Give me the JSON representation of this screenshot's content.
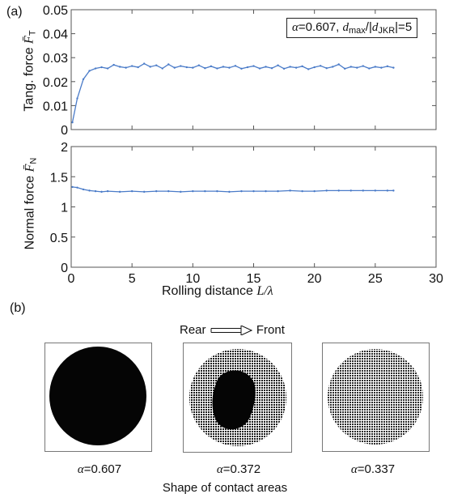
{
  "panel_a_label": "(a)",
  "panel_b_label": "(b)",
  "chart_data": [
    {
      "type": "line",
      "ylabel": "Tang. force F̄T",
      "ylabel_main": "Tang. force",
      "ylabel_symbol": "F̄",
      "ylabel_sub": "T",
      "xlim": [
        0,
        30
      ],
      "ylim": [
        0,
        0.05
      ],
      "yticks": [
        "0",
        "0.01",
        "0.02",
        "0.03",
        "0.04",
        "0.05"
      ],
      "ytick_values": [
        0,
        0.01,
        0.02,
        0.03,
        0.04,
        0.05
      ],
      "annotation": {
        "alpha_sym": "α",
        "alpha_val": "=0.607, ",
        "d": "d",
        "d_sub": "max",
        "mid": "/|",
        "d2": "d",
        "d2_sub": "JKR",
        "end": "|=5"
      },
      "series": [
        {
          "color": "#4a7bc8",
          "x": [
            0.1,
            0.5,
            1.0,
            1.5,
            2.0,
            2.5,
            3.0,
            3.5,
            4.0,
            4.5,
            5.0,
            5.5,
            6.0,
            6.5,
            7.0,
            7.5,
            8.0,
            8.5,
            9.0,
            9.5,
            10.0,
            10.5,
            11.0,
            11.5,
            12.0,
            12.5,
            13.0,
            13.5,
            14.0,
            14.5,
            15.0,
            15.5,
            16.0,
            16.5,
            17.0,
            17.5,
            18.0,
            18.5,
            19.0,
            19.5,
            20.0,
            20.5,
            21.0,
            21.5,
            22.0,
            22.5,
            23.0,
            23.5,
            24.0,
            24.5,
            25.0,
            25.5,
            26.0,
            26.5
          ],
          "y": [
            0.003,
            0.013,
            0.021,
            0.0245,
            0.0255,
            0.026,
            0.0255,
            0.027,
            0.0262,
            0.0258,
            0.0265,
            0.026,
            0.0275,
            0.0262,
            0.0268,
            0.0255,
            0.0272,
            0.0258,
            0.0265,
            0.026,
            0.0258,
            0.0268,
            0.0256,
            0.0264,
            0.0255,
            0.0262,
            0.0258,
            0.0266,
            0.0254,
            0.026,
            0.0265,
            0.0255,
            0.0262,
            0.0256,
            0.0268,
            0.0254,
            0.0262,
            0.0258,
            0.0264,
            0.0252,
            0.026,
            0.0266,
            0.0256,
            0.0262,
            0.0272,
            0.0254,
            0.0262,
            0.0258,
            0.0265,
            0.0255,
            0.0262,
            0.0258,
            0.0264,
            0.0258
          ]
        }
      ]
    },
    {
      "type": "line",
      "ylabel": "Normal force F̄N",
      "ylabel_main": "Normal force",
      "ylabel_symbol": "F̄",
      "ylabel_sub": "N",
      "xlabel": "Rolling distance L/λ",
      "xlabel_main": "Rolling distance ",
      "xlabel_var": "L/λ",
      "xlim": [
        0,
        30
      ],
      "ylim": [
        0,
        2
      ],
      "xticks": [
        "0",
        "5",
        "10",
        "15",
        "20",
        "25",
        "30"
      ],
      "xtick_values": [
        0,
        5,
        10,
        15,
        20,
        25,
        30
      ],
      "yticks": [
        "0",
        "0.5",
        "1",
        "1.5",
        "2"
      ],
      "ytick_values": [
        0,
        0.5,
        1,
        1.5,
        2
      ],
      "series": [
        {
          "color": "#4a7bc8",
          "x": [
            0.1,
            0.5,
            1.0,
            1.5,
            2.0,
            2.5,
            3.0,
            4.0,
            5.0,
            6.0,
            7.0,
            8.0,
            9.0,
            10.0,
            11.0,
            12.0,
            13.0,
            14.0,
            15.0,
            16.0,
            17.0,
            18.0,
            19.0,
            20.0,
            21.0,
            22.0,
            23.0,
            24.0,
            25.0,
            26.0,
            26.5
          ],
          "y": [
            1.33,
            1.32,
            1.29,
            1.27,
            1.26,
            1.25,
            1.26,
            1.25,
            1.26,
            1.25,
            1.26,
            1.26,
            1.25,
            1.26,
            1.26,
            1.26,
            1.25,
            1.26,
            1.26,
            1.26,
            1.26,
            1.27,
            1.26,
            1.26,
            1.27,
            1.27,
            1.27,
            1.27,
            1.27,
            1.27,
            1.27
          ]
        }
      ]
    }
  ],
  "panel_b": {
    "direction": {
      "rear": "Rear",
      "front": "Front"
    },
    "caption": "Shape of contact areas",
    "contacts": [
      {
        "alpha_sym": "α",
        "value": "=0.607",
        "icon": "contact-area-full-dark"
      },
      {
        "alpha_sym": "α",
        "value": "=0.372",
        "icon": "contact-area-partial-slip"
      },
      {
        "alpha_sym": "α",
        "value": "=0.337",
        "icon": "contact-area-full-slip"
      }
    ]
  }
}
